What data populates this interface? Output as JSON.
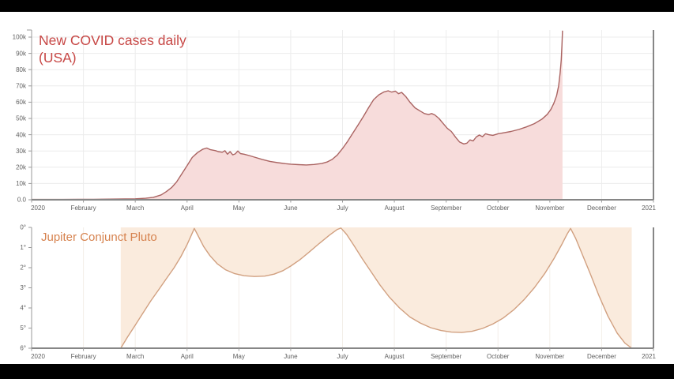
{
  "chart_data": [
    {
      "type": "area",
      "title": "New COVID cases daily (USA)",
      "title_lines": [
        "New COVID cases daily",
        "(USA)"
      ],
      "legend": "none",
      "grid": "horizontal and vertical, light gray",
      "x_axis": {
        "unit": "months of 2020",
        "range": [
          0,
          12
        ],
        "tick_labels": [
          "2020",
          "February",
          "March",
          "April",
          "May",
          "June",
          "July",
          "August",
          "September",
          "October",
          "November",
          "December",
          "2021"
        ]
      },
      "y_axis": {
        "unit": "new cases per day (thousands)",
        "range": [
          0,
          104
        ],
        "tick_values": [
          0,
          10,
          20,
          30,
          40,
          50,
          60,
          70,
          80,
          90,
          100
        ],
        "tick_labels": [
          "0.0",
          "10k",
          "20k",
          "30k",
          "40k",
          "50k",
          "60k",
          "70k",
          "80k",
          "90k",
          "100k"
        ]
      },
      "series": [
        {
          "name": "New COVID cases daily (USA)",
          "x_unit": "month (0 = Jan 1 2020)",
          "y_unit": "thousands of cases",
          "points": [
            [
              0.0,
              0.2
            ],
            [
              0.3,
              0.2
            ],
            [
              0.6,
              0.2
            ],
            [
              0.9,
              0.3
            ],
            [
              1.2,
              0.3
            ],
            [
              1.5,
              0.4
            ],
            [
              1.8,
              0.5
            ],
            [
              2.0,
              0.6
            ],
            [
              2.2,
              0.9
            ],
            [
              2.35,
              1.5
            ],
            [
              2.5,
              3
            ],
            [
              2.6,
              5
            ],
            [
              2.7,
              7.5
            ],
            [
              2.8,
              11
            ],
            [
              2.9,
              16
            ],
            [
              3.0,
              21
            ],
            [
              3.1,
              26
            ],
            [
              3.2,
              29
            ],
            [
              3.3,
              31
            ],
            [
              3.38,
              31.8
            ],
            [
              3.45,
              30.8
            ],
            [
              3.55,
              30.2
            ],
            [
              3.6,
              29.6
            ],
            [
              3.68,
              29.2
            ],
            [
              3.73,
              30.2
            ],
            [
              3.78,
              28.0
            ],
            [
              3.83,
              29.6
            ],
            [
              3.88,
              27.6
            ],
            [
              3.93,
              28.2
            ],
            [
              3.98,
              30.0
            ],
            [
              4.03,
              28.4
            ],
            [
              4.1,
              28.0
            ],
            [
              4.2,
              27.2
            ],
            [
              4.3,
              26.2
            ],
            [
              4.45,
              24.8
            ],
            [
              4.6,
              23.6
            ],
            [
              4.75,
              22.8
            ],
            [
              4.9,
              22.2
            ],
            [
              5.0,
              21.9
            ],
            [
              5.15,
              21.6
            ],
            [
              5.3,
              21.4
            ],
            [
              5.45,
              21.7
            ],
            [
              5.6,
              22.3
            ],
            [
              5.7,
              23.2
            ],
            [
              5.8,
              24.8
            ],
            [
              5.9,
              27.5
            ],
            [
              6.0,
              31.5
            ],
            [
              6.1,
              36
            ],
            [
              6.2,
              41
            ],
            [
              6.3,
              46
            ],
            [
              6.4,
              51
            ],
            [
              6.5,
              56.5
            ],
            [
              6.6,
              61.5
            ],
            [
              6.7,
              64.5
            ],
            [
              6.8,
              66.3
            ],
            [
              6.88,
              67.0
            ],
            [
              6.95,
              66.2
            ],
            [
              7.02,
              66.8
            ],
            [
              7.08,
              65.2
            ],
            [
              7.14,
              66.0
            ],
            [
              7.22,
              63.5
            ],
            [
              7.3,
              60
            ],
            [
              7.4,
              56.5
            ],
            [
              7.5,
              54.5
            ],
            [
              7.58,
              53.0
            ],
            [
              7.66,
              52.4
            ],
            [
              7.72,
              53.0
            ],
            [
              7.78,
              52.2
            ],
            [
              7.86,
              50.0
            ],
            [
              7.94,
              47.0
            ],
            [
              8.02,
              44.0
            ],
            [
              8.1,
              42.0
            ],
            [
              8.18,
              38.5
            ],
            [
              8.26,
              35.5
            ],
            [
              8.34,
              34.3
            ],
            [
              8.4,
              34.8
            ],
            [
              8.46,
              36.8
            ],
            [
              8.52,
              36.2
            ],
            [
              8.58,
              38.6
            ],
            [
              8.64,
              39.8
            ],
            [
              8.7,
              38.8
            ],
            [
              8.76,
              40.6
            ],
            [
              8.82,
              40.0
            ],
            [
              8.9,
              39.6
            ],
            [
              9.0,
              40.6
            ],
            [
              9.12,
              41.2
            ],
            [
              9.25,
              42.0
            ],
            [
              9.4,
              43.2
            ],
            [
              9.55,
              44.8
            ],
            [
              9.7,
              46.8
            ],
            [
              9.85,
              49.6
            ],
            [
              9.95,
              52.5
            ],
            [
              10.02,
              55.5
            ],
            [
              10.08,
              59.5
            ],
            [
              10.13,
              64
            ],
            [
              10.17,
              70
            ],
            [
              10.2,
              78
            ],
            [
              10.22,
              86
            ],
            [
              10.235,
              95
            ],
            [
              10.245,
              104
            ]
          ]
        }
      ],
      "colors": {
        "title": "#c74745",
        "line": "#aa6462",
        "fill": "#f7dcdb",
        "grid": "#ececec",
        "axis_left": "#9a9a9a",
        "axis_frame": "#868686",
        "label": "#606060"
      }
    },
    {
      "type": "area",
      "title": "Jupiter Conjunct Pluto",
      "title_lines": [
        "Jupiter Conjunct Pluto"
      ],
      "legend": "none",
      "grid": "vertical only, very light",
      "x_axis": {
        "unit": "months of 2020",
        "range": [
          0,
          12
        ],
        "tick_labels": [
          "2020",
          "February",
          "March",
          "April",
          "May",
          "June",
          "July",
          "August",
          "September",
          "October",
          "November",
          "December",
          "2021"
        ]
      },
      "y_axis": {
        "unit": "degrees of separation (0° at top, inverted)",
        "range": [
          0,
          6
        ],
        "inverted": true,
        "tick_values": [
          0,
          1,
          2,
          3,
          4,
          5,
          6
        ],
        "tick_labels": [
          "0°",
          "1°",
          "2°",
          "3°",
          "4°",
          "5°",
          "6°"
        ]
      },
      "series": [
        {
          "name": "Jupiter Conjunct Pluto",
          "x_unit": "month (0 = Jan 1 2020)",
          "y_unit": "degrees",
          "points": [
            [
              1.72,
              6.0
            ],
            [
              1.85,
              5.45
            ],
            [
              2.0,
              4.85
            ],
            [
              2.15,
              4.25
            ],
            [
              2.3,
              3.65
            ],
            [
              2.45,
              3.1
            ],
            [
              2.6,
              2.55
            ],
            [
              2.75,
              2.0
            ],
            [
              2.88,
              1.45
            ],
            [
              3.0,
              0.85
            ],
            [
              3.08,
              0.4
            ],
            [
              3.14,
              0.05
            ],
            [
              3.22,
              0.45
            ],
            [
              3.32,
              0.95
            ],
            [
              3.44,
              1.4
            ],
            [
              3.58,
              1.8
            ],
            [
              3.74,
              2.1
            ],
            [
              3.92,
              2.3
            ],
            [
              4.1,
              2.4
            ],
            [
              4.3,
              2.44
            ],
            [
              4.5,
              2.42
            ],
            [
              4.68,
              2.32
            ],
            [
              4.85,
              2.15
            ],
            [
              5.0,
              1.92
            ],
            [
              5.18,
              1.6
            ],
            [
              5.36,
              1.22
            ],
            [
              5.55,
              0.8
            ],
            [
              5.75,
              0.38
            ],
            [
              5.9,
              0.1
            ],
            [
              5.97,
              0.03
            ],
            [
              6.08,
              0.35
            ],
            [
              6.22,
              0.9
            ],
            [
              6.38,
              1.55
            ],
            [
              6.55,
              2.2
            ],
            [
              6.72,
              2.85
            ],
            [
              6.9,
              3.45
            ],
            [
              7.1,
              4.0
            ],
            [
              7.3,
              4.45
            ],
            [
              7.5,
              4.75
            ],
            [
              7.7,
              4.98
            ],
            [
              7.9,
              5.12
            ],
            [
              8.1,
              5.2
            ],
            [
              8.3,
              5.22
            ],
            [
              8.5,
              5.16
            ],
            [
              8.7,
              5.02
            ],
            [
              8.9,
              4.8
            ],
            [
              9.1,
              4.5
            ],
            [
              9.3,
              4.1
            ],
            [
              9.5,
              3.6
            ],
            [
              9.7,
              3.0
            ],
            [
              9.9,
              2.3
            ],
            [
              10.08,
              1.55
            ],
            [
              10.22,
              0.9
            ],
            [
              10.33,
              0.35
            ],
            [
              10.4,
              0.05
            ],
            [
              10.5,
              0.55
            ],
            [
              10.62,
              1.3
            ],
            [
              10.78,
              2.3
            ],
            [
              10.95,
              3.4
            ],
            [
              11.12,
              4.4
            ],
            [
              11.3,
              5.25
            ],
            [
              11.45,
              5.75
            ],
            [
              11.58,
              6.0
            ]
          ]
        }
      ],
      "colors": {
        "title": "#d6824e",
        "line": "#d1a080",
        "fill": "#faebdd",
        "grid": "#f3eee8",
        "axis_left": "#9a9a9a",
        "axis_frame": "#868686",
        "label": "#606060"
      }
    }
  ]
}
